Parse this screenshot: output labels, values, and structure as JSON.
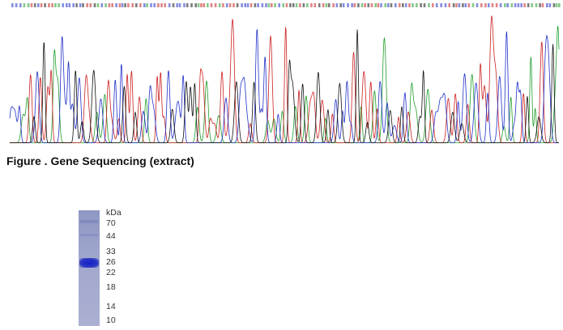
{
  "caption": "Figure . Gene Sequencing (extract)",
  "gel": {
    "unit": "kDa",
    "markers": [
      70,
      44,
      33,
      26,
      22,
      18,
      14,
      10
    ]
  }
}
